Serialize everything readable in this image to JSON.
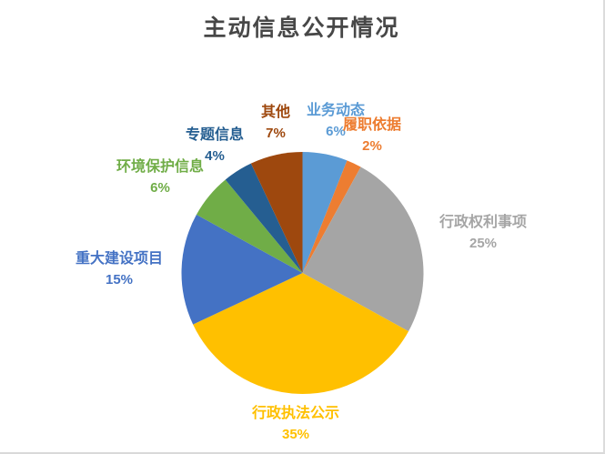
{
  "frame": {
    "background": "#FFFFFF",
    "border_color": "#D9D9D9"
  },
  "title_color": "#474747",
  "chart_data": {
    "type": "pie",
    "title": "主动信息公开情况",
    "legend": "none",
    "labels_position": "outside",
    "start_angle_deg": 0,
    "direction": "clockwise",
    "slices": [
      {
        "label": "业务动态",
        "value": 6,
        "pct": "6%",
        "color": "#5B9BD5"
      },
      {
        "label": "履职依据",
        "value": 2,
        "pct": "2%",
        "color": "#ED7D31"
      },
      {
        "label": "行政权利事项",
        "value": 25,
        "pct": "25%",
        "color": "#A5A5A5"
      },
      {
        "label": "行政执法公示",
        "value": 35,
        "pct": "35%",
        "color": "#FFC000"
      },
      {
        "label": "重大建设项目",
        "value": 15,
        "pct": "15%",
        "color": "#4472C4"
      },
      {
        "label": "环境保护信息",
        "value": 6,
        "pct": "6%",
        "color": "#70AD47"
      },
      {
        "label": "专题信息",
        "value": 4,
        "pct": "4%",
        "color": "#255E91"
      },
      {
        "label": "其他",
        "value": 7,
        "pct": "7%",
        "color": "#9E480E"
      }
    ]
  }
}
